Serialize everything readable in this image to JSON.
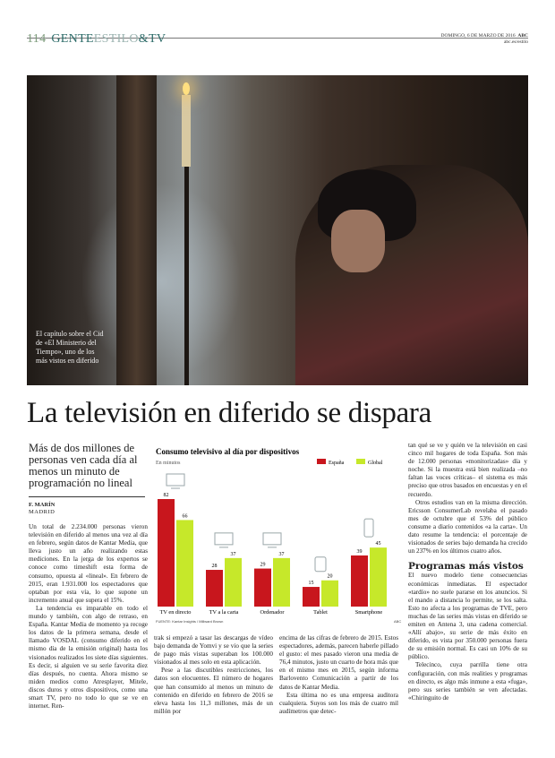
{
  "header": {
    "page_number": "114",
    "section_a": "GENTE",
    "section_b": "ESTILO",
    "section_c": "&TV",
    "date": "DOMINGO, 6 DE MARZO DE 2016",
    "paper": "ABC",
    "url": "abc.es/estilo"
  },
  "photo": {
    "caption": "El capítulo sobre el Cid de «El Ministerio del Tiempo», uno de los más vistos en diferido"
  },
  "article": {
    "headline": "La televisión en diferido se dispara",
    "subhead": "Más de dos millones de personas ven cada día al menos un minuto de programación no lineal",
    "author": "F. MARÍN",
    "location": "MADRID",
    "col1": [
      "Un total de 2.234.000 personas vieron televisión en diferido al menos una vez al día en febrero, según datos de Kantar Media, que lleva justo un año realizando estas mediciones. En la jerga de los expertos se conoce como timeshift esta forma de consumo, opuesta al «lineal». En febrero de 2015, eran 1.931.000 los espectadores que optaban por esta vía, lo que supone un incremento anual que supera el 15%.",
      "La tendencia es imparable en todo el mundo y también, con algo de retraso, en España. Kantar Media de momento ya recoge los datos de la primera semana, desde el llamado VOSDAL (consumo diferido en el mismo día de la emisión original) hasta los visionados realizados los siete días siguientes. Es decir, si alguien ve su serie favorita diez días después, no cuenta. Ahora mismo se miden medios como Atresplayer, Mitele, discos duros y otros dispositivos, como una smart TV, pero no todo lo que se ve en internet. Ren-"
    ],
    "col2": [
      "trak si empezó a tasar las descargas de vídeo bajo demanda de Yomvi y se vio que la series de pago más vistas superaban los 100.000 visionados al mes solo en esta aplicación.",
      "Pese a las discutibles restricciones, los datos son elocuentes. El número de hogares que han consumido al menos un minuto de contenido en diferido en febrero de 2016 se eleva hasta los 11,3 millones, más de un millón por"
    ],
    "col3": [
      "encima de las cifras de febrero de 2015. Estos espectadores, además, parecen haberle pillado el gusto: el mes pasado vieron una media de 76,4 minutos, justo un cuarto de hora más que en el mismo mes en 2015, según informa Barlovento Comunicación a partir de los datos de Kantar Media.",
      "Esta última no es una empresa auditora cualquiera. Suyos son los más de cuatro mil audímetros que detec-"
    ],
    "col4": [
      "tan qué se ve y quién ve la televisión en casi cinco mil hogares de toda España. Son más de 12.000 personas «monitorizadas» día y noche. Si la muestra está bien realizada –no faltan las voces críticas– el sistema es más preciso que otros basados en encuestas y en el recuerdo.",
      "Otros estudios van en la misma dirección. Ericsson ConsumerLab revelaba el pasado mes de octubre que el 53% del público consume a diario contenidos «a la carta». Un dato resume la tendencia: el porcentaje de visionados de series bajo demanda ha crecido un 237% en los últimos cuatro años."
    ],
    "subheading2": "Programas más vistos",
    "col4b": [
      "El nuevo modelo tiene consecuencias económicas inmediatas. El espectador «tardío» no suele pararse en los anuncios. Si el mando a distancia lo permite, se los salta. Esto no afecta a los programas de TVE, pero muchas de las series más vistas en diferido se emiten en Antena 3, una cadena comercial. «Allí abajo», su serie de más éxito en diferido, es vista por 350.000 personas fuera de su emisión normal. Es casi un 10% de su público.",
      "Telecinco, cuya parrilla tiene otra configuración, con más realities y programas en directo, es algo más inmune a esta «fuga», pero sus series también se ven afectadas. «Chiringuito de"
    ]
  },
  "chart_data": {
    "type": "bar",
    "title": "Consumo televisivo al día por dispositivos",
    "subtitle": "En minutos",
    "categories": [
      "TV en directo",
      "TV a la carta",
      "Ordenador",
      "Tablet",
      "Smartphone"
    ],
    "icons": [
      "tv-icon",
      "smart-tv-wifi-icon",
      "computer-icon",
      "tablet-touch-icon",
      "smartphone-icon"
    ],
    "series": [
      {
        "name": "España",
        "values": [
          82,
          28,
          29,
          15,
          39
        ],
        "color": "#c8161d"
      },
      {
        "name": "Global",
        "values": [
          66,
          37,
          37,
          20,
          45
        ],
        "color": "#c6e82a"
      }
    ],
    "ylim": [
      0,
      82
    ],
    "legend": "top-right",
    "grid": false,
    "source": "FUENTE: Kantar Insights / Millward Brown",
    "credit": "ABC"
  }
}
